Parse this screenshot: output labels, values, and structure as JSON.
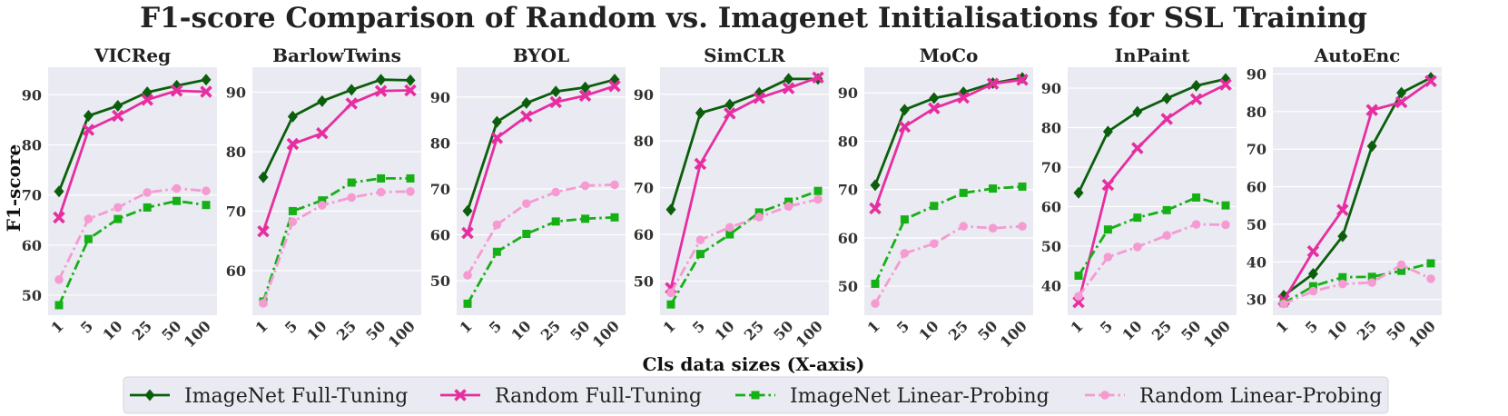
{
  "chart_data": {
    "type": "line",
    "title": "F1-score Comparison of Random vs. Imagenet Initialisations for SSL Training",
    "xlabel": "Cls data sizes (X-axis)",
    "ylabel": "F1-score",
    "x": [
      "1",
      "5",
      "10",
      "25",
      "50",
      "100"
    ],
    "grid": true,
    "legend": "bottom-center",
    "series_styles": [
      {
        "name": "ImageNet Full-Tuning",
        "color": "#0b5e0b",
        "dash": "solid",
        "marker": "diamond"
      },
      {
        "name": "Random Full-Tuning",
        "color": "#e62ea0",
        "dash": "solid",
        "marker": "x"
      },
      {
        "name": "ImageNet Linear-Probing",
        "color": "#15b015",
        "dash": "dashdot",
        "marker": "square"
      },
      {
        "name": "Random Linear-Probing",
        "color": "#f59bd2",
        "dash": "dashdot",
        "marker": "circle"
      }
    ],
    "panels": [
      {
        "title": "VICReg",
        "ylim": [
          46,
          95.5
        ],
        "yticks": [
          50,
          60,
          70,
          80,
          90
        ],
        "series": [
          {
            "name": "ImageNet Full-Tuning",
            "values": [
              70.7,
              85.8,
              87.8,
              90.5,
              91.8,
              93.0
            ]
          },
          {
            "name": "Random Full-Tuning",
            "values": [
              65.5,
              83.0,
              85.8,
              89.0,
              90.8,
              90.6
            ]
          },
          {
            "name": "ImageNet Linear-Probing",
            "values": [
              48.0,
              61.2,
              65.2,
              67.5,
              68.8,
              68.0
            ]
          },
          {
            "name": "Random Linear-Probing",
            "values": [
              53.1,
              65.2,
              67.5,
              70.5,
              71.3,
              70.8
            ]
          }
        ]
      },
      {
        "title": "BarlowTwins",
        "ylim": [
          52.5,
          94.2
        ],
        "yticks": [
          60,
          70,
          80,
          90
        ],
        "series": [
          {
            "name": "ImageNet Full-Tuning",
            "values": [
              75.7,
              85.9,
              88.5,
              90.4,
              92.1,
              92.0
            ]
          },
          {
            "name": "Random Full-Tuning",
            "values": [
              66.6,
              81.3,
              83.1,
              88.1,
              90.2,
              90.3
            ]
          },
          {
            "name": "ImageNet Linear-Probing",
            "values": [
              54.8,
              70.0,
              71.8,
              74.8,
              75.5,
              75.5
            ]
          },
          {
            "name": "Random Linear-Probing",
            "values": [
              54.5,
              68.2,
              71.0,
              72.3,
              73.2,
              73.3
            ]
          }
        ]
      },
      {
        "title": "BYOL",
        "ylim": [
          42.5,
          96.5
        ],
        "yticks": [
          50,
          60,
          70,
          80,
          90
        ],
        "series": [
          {
            "name": "ImageNet Full-Tuning",
            "values": [
              65.2,
              84.6,
              88.7,
              91.2,
              92.1,
              93.8
            ]
          },
          {
            "name": "Random Full-Tuning",
            "values": [
              60.4,
              81.1,
              85.8,
              88.9,
              90.3,
              92.4
            ]
          },
          {
            "name": "ImageNet Linear-Probing",
            "values": [
              45.0,
              56.3,
              60.2,
              62.9,
              63.5,
              63.8
            ]
          },
          {
            "name": "Random Linear-Probing",
            "values": [
              51.2,
              62.2,
              66.8,
              69.3,
              70.7,
              70.9
            ]
          }
        ]
      },
      {
        "title": "SimCLR",
        "ylim": [
          42.7,
          95.8
        ],
        "yticks": [
          50,
          60,
          70,
          80,
          90
        ],
        "series": [
          {
            "name": "ImageNet Full-Tuning",
            "values": [
              65.3,
              86.0,
              87.8,
              90.3,
              93.3,
              93.3
            ]
          },
          {
            "name": "Random Full-Tuning",
            "values": [
              48.5,
              75.1,
              85.9,
              89.2,
              91.3,
              93.6
            ]
          },
          {
            "name": "ImageNet Linear-Probing",
            "values": [
              45.0,
              55.8,
              60.0,
              64.7,
              67.0,
              69.3
            ]
          },
          {
            "name": "Random Linear-Probing",
            "values": [
              47.5,
              58.8,
              61.5,
              63.7,
              66.0,
              67.5
            ]
          }
        ]
      },
      {
        "title": "MoCo",
        "ylim": [
          44,
          95.3
        ],
        "yticks": [
          50,
          60,
          70,
          80,
          90
        ],
        "series": [
          {
            "name": "ImageNet Full-Tuning",
            "values": [
              70.9,
              86.5,
              88.9,
              90.1,
              92.0,
              93.1
            ]
          },
          {
            "name": "Random Full-Tuning",
            "values": [
              66.1,
              83.0,
              86.8,
              89.0,
              91.9,
              92.7
            ]
          },
          {
            "name": "ImageNet Linear-Probing",
            "values": [
              50.5,
              63.8,
              66.6,
              69.3,
              70.2,
              70.6
            ]
          },
          {
            "name": "Random Linear-Probing",
            "values": [
              46.4,
              56.8,
              58.8,
              62.4,
              62.0,
              62.4
            ]
          }
        ]
      },
      {
        "title": "InPaint",
        "ylim": [
          32.5,
          95.3
        ],
        "yticks": [
          40,
          50,
          60,
          70,
          80,
          90
        ],
        "series": [
          {
            "name": "ImageNet Full-Tuning",
            "values": [
              63.5,
              79.0,
              84.0,
              87.4,
              90.6,
              92.3
            ]
          },
          {
            "name": "Random Full-Tuning",
            "values": [
              35.8,
              65.5,
              74.8,
              82.2,
              87.2,
              90.9
            ]
          },
          {
            "name": "ImageNet Linear-Probing",
            "values": [
              42.5,
              54.2,
              57.2,
              59.1,
              62.3,
              60.3
            ]
          },
          {
            "name": "Random Linear-Probing",
            "values": [
              37.3,
              47.2,
              49.8,
              52.7,
              55.5,
              55.4
            ]
          }
        ]
      },
      {
        "title": "AutoEnc",
        "ylim": [
          25.8,
          91.8
        ],
        "yticks": [
          30,
          40,
          50,
          60,
          70,
          80,
          90
        ],
        "series": [
          {
            "name": "ImageNet Full-Tuning",
            "values": [
              31.0,
              36.8,
              46.8,
              70.8,
              85.0,
              89.0
            ]
          },
          {
            "name": "Random Full-Tuning",
            "values": [
              29.8,
              42.8,
              53.8,
              80.4,
              82.5,
              88.1
            ]
          },
          {
            "name": "ImageNet Linear-Probing",
            "values": [
              29.0,
              33.5,
              35.9,
              36.0,
              37.6,
              39.6
            ]
          },
          {
            "name": "Random Linear-Probing",
            "values": [
              28.8,
              32.2,
              34.1,
              34.5,
              39.2,
              35.5
            ]
          }
        ]
      }
    ]
  }
}
